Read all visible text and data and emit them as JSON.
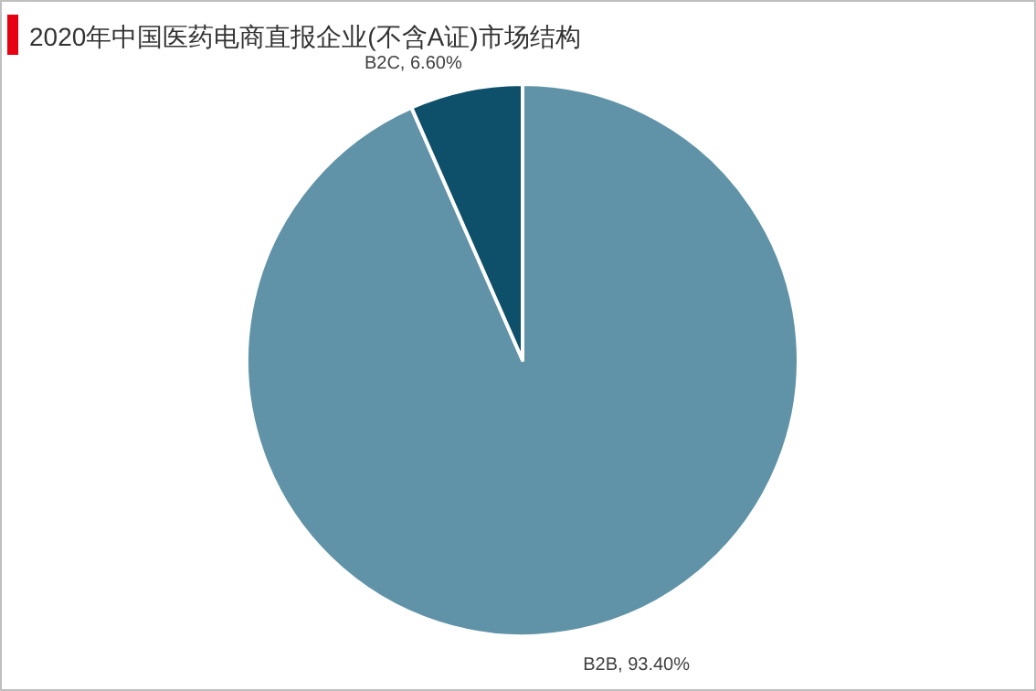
{
  "chart_data": {
    "type": "pie",
    "title": "2020年中国医药电商直报企业(不含A证)市场结构",
    "categories": [
      "B2B",
      "B2C"
    ],
    "values": [
      93.4,
      6.6
    ],
    "value_labels": [
      "93.40%",
      "6.60%"
    ],
    "colors": [
      "#6093a8",
      "#0e4f69"
    ]
  }
}
